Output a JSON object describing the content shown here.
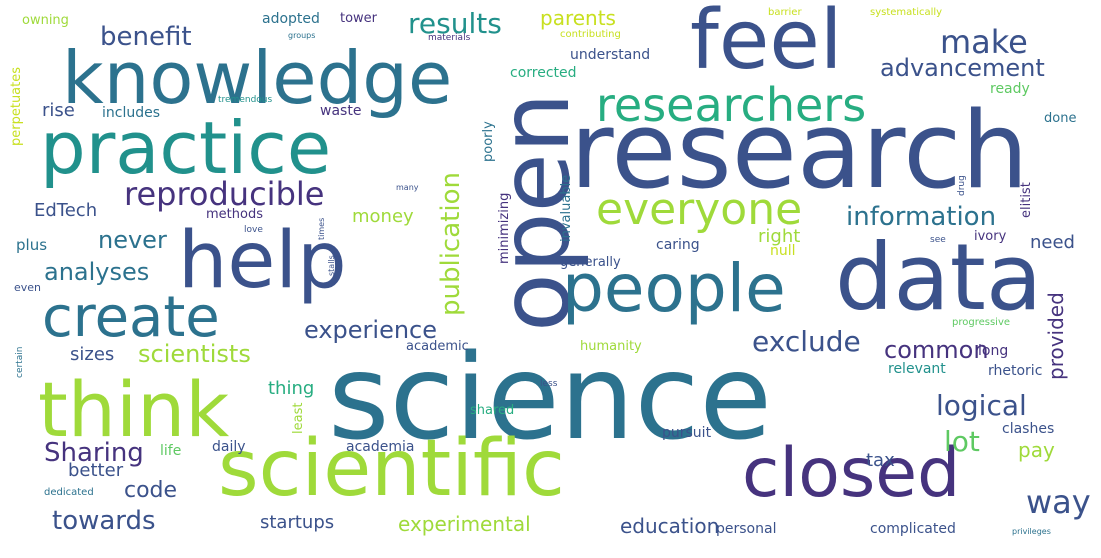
{
  "palette": {
    "dark_purple": "#46337e",
    "indigo": "#3b528b",
    "slate_blue": "#365c8d",
    "steel_blue": "#2c728e",
    "teal": "#21918c",
    "sea_green": "#27ad81",
    "green": "#5ec962",
    "lime": "#9fda3a",
    "yellow_green": "#c8e020",
    "deep_purple": "#440154"
  },
  "words": [
    {
      "text": "science",
      "color": "#2c728e",
      "size": "xxl"
    },
    {
      "text": "research",
      "color": "#3b528b",
      "size": "xxl"
    },
    {
      "text": "open",
      "color": "#3b528b",
      "size": "xxl"
    },
    {
      "text": "knowledge",
      "color": "#2c728e",
      "size": "xl"
    },
    {
      "text": "feel",
      "color": "#3b528b",
      "size": "xl"
    },
    {
      "text": "practice",
      "color": "#21918c",
      "size": "xl"
    },
    {
      "text": "data",
      "color": "#3b528b",
      "size": "xl"
    },
    {
      "text": "scientific",
      "color": "#9fda3a",
      "size": "xl"
    },
    {
      "text": "help",
      "color": "#3b528b",
      "size": "xl"
    },
    {
      "text": "think",
      "color": "#9fda3a",
      "size": "xl"
    },
    {
      "text": "people",
      "color": "#2c728e",
      "size": "xl"
    },
    {
      "text": "closed",
      "color": "#46337e",
      "size": "xl"
    },
    {
      "text": "researchers",
      "color": "#27ad81",
      "size": "l"
    },
    {
      "text": "create",
      "color": "#2c728e",
      "size": "l"
    },
    {
      "text": "everyone",
      "color": "#9fda3a",
      "size": "l"
    },
    {
      "text": "reproducible",
      "color": "#46337e",
      "size": "m"
    },
    {
      "text": "make",
      "color": "#3b528b",
      "size": "m"
    },
    {
      "text": "results",
      "color": "#21918c",
      "size": "m"
    },
    {
      "text": "benefit",
      "color": "#3b528b",
      "size": "m"
    },
    {
      "text": "advancement",
      "color": "#3b528b",
      "size": "m"
    },
    {
      "text": "information",
      "color": "#2c728e",
      "size": "m"
    },
    {
      "text": "publication",
      "color": "#9fda3a",
      "size": "m"
    },
    {
      "text": "way",
      "color": "#3b528b",
      "size": "m"
    },
    {
      "text": "Sharing",
      "color": "#46337e",
      "size": "m"
    },
    {
      "text": "logical",
      "color": "#3b528b",
      "size": "m"
    },
    {
      "text": "exclude",
      "color": "#3b528b",
      "size": "m"
    },
    {
      "text": "experience",
      "color": "#3b528b",
      "size": "m"
    },
    {
      "text": "scientists",
      "color": "#9fda3a",
      "size": "m"
    },
    {
      "text": "analyses",
      "color": "#2c728e",
      "size": "m"
    },
    {
      "text": "towards",
      "color": "#3b528b",
      "size": "m"
    },
    {
      "text": "common",
      "color": "#46337e",
      "size": "m"
    },
    {
      "text": "never",
      "color": "#2c728e",
      "size": "m"
    },
    {
      "text": "lot",
      "color": "#5ec962",
      "size": "m"
    },
    {
      "text": "code",
      "color": "#3b528b",
      "size": "s"
    },
    {
      "text": "experimental",
      "color": "#9fda3a",
      "size": "s"
    },
    {
      "text": "education",
      "color": "#3b528b",
      "size": "s"
    },
    {
      "text": "startups",
      "color": "#3b528b",
      "size": "s"
    },
    {
      "text": "provided",
      "color": "#46337e",
      "size": "s"
    },
    {
      "text": "parents",
      "color": "#c8e020",
      "size": "s"
    },
    {
      "text": "money",
      "color": "#9fda3a",
      "size": "s"
    },
    {
      "text": "right",
      "color": "#9fda3a",
      "size": "s"
    },
    {
      "text": "EdTech",
      "color": "#3b528b",
      "size": "s"
    },
    {
      "text": "better",
      "color": "#3b528b",
      "size": "s"
    },
    {
      "text": "pay",
      "color": "#9fda3a",
      "size": "s"
    },
    {
      "text": "need",
      "color": "#3b528b",
      "size": "s"
    },
    {
      "text": "tax",
      "color": "#3b528b",
      "size": "s"
    },
    {
      "text": "thing",
      "color": "#27ad81",
      "size": "s"
    },
    {
      "text": "sizes",
      "color": "#3b528b",
      "size": "s"
    },
    {
      "text": "plus",
      "color": "#2c728e",
      "size": "xs"
    },
    {
      "text": "rise",
      "color": "#3b528b",
      "size": "s"
    },
    {
      "text": "methods",
      "color": "#46337e",
      "size": "xs"
    },
    {
      "text": "understand",
      "color": "#3b528b",
      "size": "xs"
    },
    {
      "text": "corrected",
      "color": "#27ad81",
      "size": "xs"
    },
    {
      "text": "includes",
      "color": "#2c728e",
      "size": "xs"
    },
    {
      "text": "waste",
      "color": "#46337e",
      "size": "xs"
    },
    {
      "text": "ready",
      "color": "#5ec962",
      "size": "xs"
    },
    {
      "text": "done",
      "color": "#2c728e",
      "size": "xs"
    },
    {
      "text": "adopted",
      "color": "#2c728e",
      "size": "xs"
    },
    {
      "text": "tower",
      "color": "#46337e",
      "size": "xs"
    },
    {
      "text": "owning",
      "color": "#9fda3a",
      "size": "xs"
    },
    {
      "text": "perpetuates",
      "color": "#c8e020",
      "size": "xs"
    },
    {
      "text": "caring",
      "color": "#3b528b",
      "size": "xs"
    },
    {
      "text": "null",
      "color": "#c8e020",
      "size": "xs"
    },
    {
      "text": "generally",
      "color": "#3b528b",
      "size": "xs"
    },
    {
      "text": "academic",
      "color": "#3b528b",
      "size": "xs"
    },
    {
      "text": "humanity",
      "color": "#9fda3a",
      "size": "xs"
    },
    {
      "text": "long",
      "color": "#46337e",
      "size": "xs"
    },
    {
      "text": "relevant",
      "color": "#21918c",
      "size": "xs"
    },
    {
      "text": "rhetoric",
      "color": "#3b528b",
      "size": "xs"
    },
    {
      "text": "clashes",
      "color": "#3b528b",
      "size": "xs"
    },
    {
      "text": "pursuit",
      "color": "#3b528b",
      "size": "xs"
    },
    {
      "text": "shared",
      "color": "#27ad81",
      "size": "xs"
    },
    {
      "text": "academia",
      "color": "#3b528b",
      "size": "xs"
    },
    {
      "text": "daily",
      "color": "#3b528b",
      "size": "xs"
    },
    {
      "text": "life",
      "color": "#5ec962",
      "size": "xs"
    },
    {
      "text": "personal",
      "color": "#3b528b",
      "size": "xs"
    },
    {
      "text": "complicated",
      "color": "#3b528b",
      "size": "xs"
    },
    {
      "text": "even",
      "color": "#3b528b",
      "size": "xxs"
    },
    {
      "text": "ivory",
      "color": "#46337e",
      "size": "xs"
    },
    {
      "text": "elitist",
      "color": "#46337e",
      "size": "xs"
    },
    {
      "text": "poorly",
      "color": "#2c728e",
      "size": "xs"
    },
    {
      "text": "minimizing",
      "color": "#46337e",
      "size": "xs"
    },
    {
      "text": "invaluable",
      "color": "#2c728e",
      "size": "xs"
    },
    {
      "text": "least",
      "color": "#9fda3a",
      "size": "xs"
    },
    {
      "text": "contributing",
      "color": "#c8e020",
      "size": "xxs"
    },
    {
      "text": "barrier",
      "color": "#c8e020",
      "size": "xxs"
    },
    {
      "text": "systematically",
      "color": "#c8e020",
      "size": "xxs"
    },
    {
      "text": "materials",
      "color": "#46337e",
      "size": "xxs"
    },
    {
      "text": "groups",
      "color": "#2c728e",
      "size": "xxs"
    },
    {
      "text": "tremendous",
      "color": "#21918c",
      "size": "xxs"
    },
    {
      "text": "love",
      "color": "#3b528b",
      "size": "xxs"
    },
    {
      "text": "progressive",
      "color": "#5ec962",
      "size": "xxs"
    },
    {
      "text": "certain",
      "color": "#2c728e",
      "size": "xxs"
    },
    {
      "text": "dedicated",
      "color": "#2c728e",
      "size": "xxs"
    },
    {
      "text": "less",
      "color": "#3b528b",
      "size": "xxs"
    },
    {
      "text": "see",
      "color": "#3b528b",
      "size": "xxs"
    },
    {
      "text": "drug",
      "color": "#3b528b",
      "size": "xxs"
    },
    {
      "text": "many",
      "color": "#3b528b",
      "size": "xxs"
    },
    {
      "text": "times",
      "color": "#3b528b",
      "size": "xxs"
    },
    {
      "text": "stalls",
      "color": "#3b528b",
      "size": "xxs"
    },
    {
      "text": "privileges",
      "color": "#2c728e",
      "size": "xxs"
    }
  ]
}
